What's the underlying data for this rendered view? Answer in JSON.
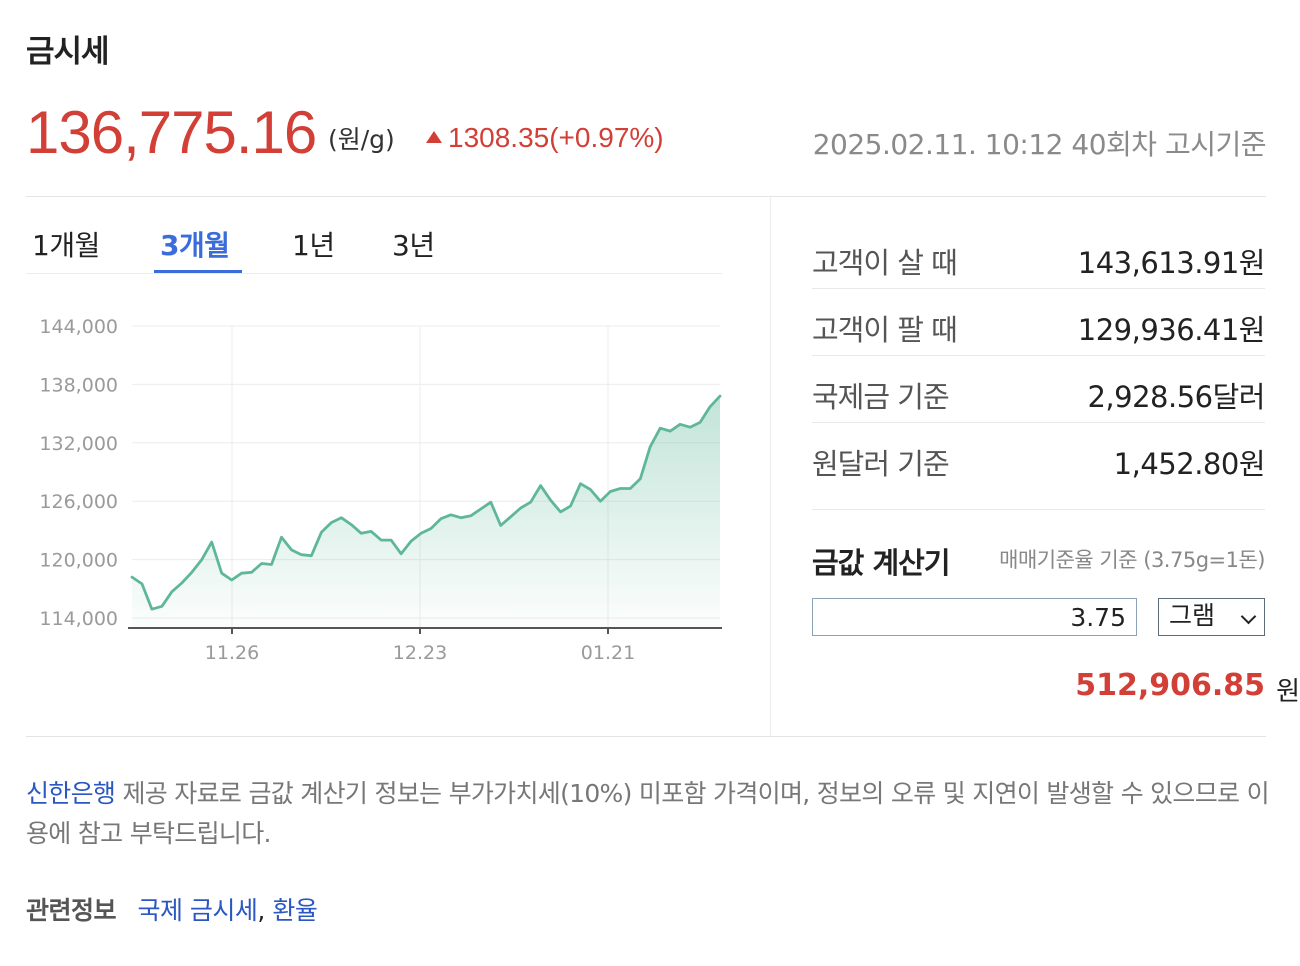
{
  "header": {
    "title": "금시세",
    "price": "136,775.16",
    "unit": "(원/g)",
    "change": "1308.35(+0.97%)",
    "timestamp": "2025.02.11. 10:12 40회차 고시기준",
    "up_color": "#d23f37"
  },
  "tabs": [
    {
      "label": "1개월",
      "active": false
    },
    {
      "label": "3개월",
      "active": true
    },
    {
      "label": "1년",
      "active": false
    },
    {
      "label": "3년",
      "active": false
    }
  ],
  "chart_data": {
    "type": "area",
    "y_ticks": [
      "144,000",
      "138,000",
      "132,000",
      "126,000",
      "120,000",
      "114,000"
    ],
    "x_ticks": [
      "11.26",
      "12.23",
      "01.21"
    ],
    "ylim": [
      114000,
      144000
    ],
    "grid": true,
    "line_color": "#5fb79a",
    "values": [
      118200,
      117500,
      114900,
      115200,
      116700,
      117600,
      118700,
      120000,
      121800,
      118600,
      117900,
      118600,
      118700,
      119600,
      119500,
      122300,
      121000,
      120500,
      120400,
      122800,
      123800,
      124300,
      123600,
      122700,
      122900,
      122000,
      122000,
      120600,
      121900,
      122700,
      123200,
      124200,
      124600,
      124300,
      124500,
      125200,
      125900,
      123500,
      124400,
      125300,
      125900,
      127600,
      126100,
      124900,
      125500,
      127800,
      127200,
      126000,
      127000,
      127300,
      127300,
      128300,
      131600,
      133500,
      133200,
      133900,
      133600,
      134100,
      135700,
      136800
    ]
  },
  "rates": [
    {
      "label": "고객이 살 때",
      "value": "143,613.91원"
    },
    {
      "label": "고객이 팔 때",
      "value": "129,936.41원"
    },
    {
      "label": "국제금 기준",
      "value": "2,928.56달러"
    },
    {
      "label": "원달러 기준",
      "value": "1,452.80원"
    }
  ],
  "calculator": {
    "title": "금값 계산기",
    "note": "매매기준율 기준 (3.75g=1돈)",
    "input_value": "3.75",
    "unit_selected": "그램",
    "result": "512,906.85",
    "result_unit": "원"
  },
  "footer": {
    "bank": "신한은행",
    "disclaimer": " 제공 자료로 금값 계산기 정보는 부가가치세(10%) 미포함 가격이며, 정보의 오류 및 지연이 발생할 수 있으므로 이용에 참고 부탁드립니다.",
    "related_label": "관련정보",
    "links": [
      "국제 금시세",
      "환율"
    ],
    "comma": ","
  }
}
